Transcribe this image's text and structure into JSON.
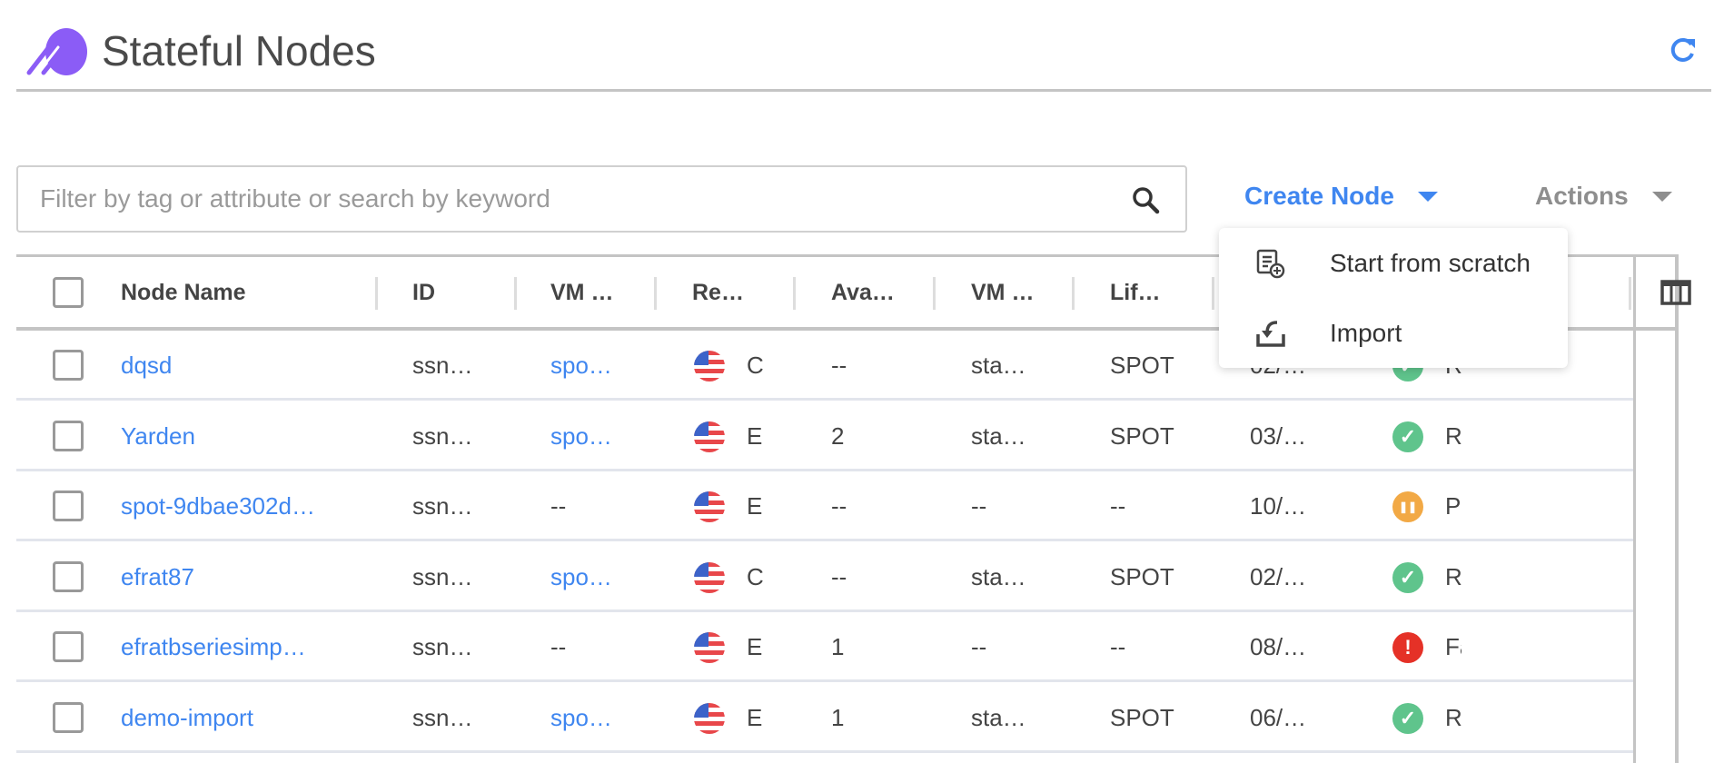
{
  "header": {
    "title": "Stateful Nodes",
    "logo": "spot-logo",
    "refresh_icon": "refresh-icon"
  },
  "colors": {
    "accent": "#3f86f0",
    "logo": "#8b5cf6",
    "running": "#5fc48c",
    "paused": "#f2a945",
    "failed": "#e53127"
  },
  "search": {
    "placeholder": "Filter by tag or attribute or search by keyword",
    "value": ""
  },
  "toolbar": {
    "create_label": "Create Node",
    "actions_label": "Actions"
  },
  "create_menu": {
    "items": [
      {
        "label": "Start from scratch",
        "icon": "document-plus-icon"
      },
      {
        "label": "Import",
        "icon": "import-icon"
      }
    ]
  },
  "table": {
    "columns": [
      "Node Name",
      "ID",
      "VM …",
      "Re…",
      "Ava…",
      "VM …",
      "Lif…"
    ],
    "rows": [
      {
        "name": "dqsd",
        "id": "ssn…",
        "vm": "spo…",
        "vm_link": true,
        "region": "C",
        "avail": "--",
        "vm2": "sta…",
        "life": "SPOT",
        "date": "02/…",
        "status": "running",
        "status_text": "R"
      },
      {
        "name": "Yarden",
        "id": "ssn…",
        "vm": "spo…",
        "vm_link": true,
        "region": "E",
        "avail": "2",
        "vm2": "sta…",
        "life": "SPOT",
        "date": "03/…",
        "status": "running",
        "status_text": "R"
      },
      {
        "name": "spot-9dbae302d…",
        "id": "ssn…",
        "vm": "--",
        "vm_link": false,
        "region": "E",
        "avail": "--",
        "vm2": "--",
        "life": "--",
        "date": "10/…",
        "status": "paused",
        "status_text": "P"
      },
      {
        "name": "efrat87",
        "id": "ssn…",
        "vm": "spo…",
        "vm_link": true,
        "region": "C",
        "avail": "--",
        "vm2": "sta…",
        "life": "SPOT",
        "date": "02/…",
        "status": "running",
        "status_text": "R"
      },
      {
        "name": "efratbseriesimp…",
        "id": "ssn…",
        "vm": "--",
        "vm_link": false,
        "region": "E",
        "avail": "1",
        "vm2": "--",
        "life": "--",
        "date": "08/…",
        "status": "failed",
        "status_text": "Fa"
      },
      {
        "name": "demo-import",
        "id": "ssn…",
        "vm": "spo…",
        "vm_link": true,
        "region": "E",
        "avail": "1",
        "vm2": "sta…",
        "life": "SPOT",
        "date": "06/…",
        "status": "running",
        "status_text": "R"
      }
    ]
  }
}
